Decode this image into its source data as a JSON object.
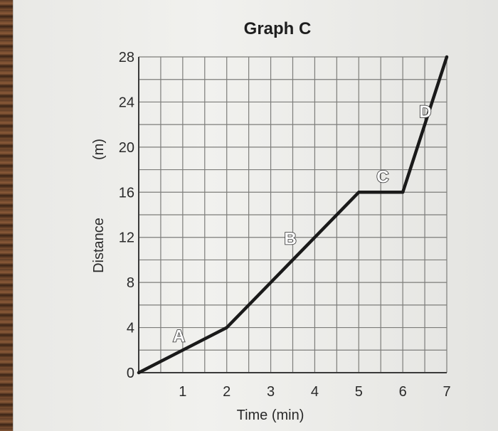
{
  "chart_data": {
    "type": "line",
    "title": "Graph C",
    "xlabel": "Time (min)",
    "ylabel": "Distance",
    "ylabel_unit": "(m)",
    "x_ticks": [
      1,
      2,
      3,
      4,
      5,
      6,
      7
    ],
    "y_ticks": [
      0,
      4,
      8,
      12,
      16,
      20,
      24,
      28
    ],
    "xlim": [
      0,
      7
    ],
    "ylim": [
      0,
      28
    ],
    "grid": true,
    "series": [
      {
        "x": [
          0,
          2,
          5,
          6,
          7
        ],
        "y": [
          0,
          4,
          16,
          16,
          28
        ],
        "color": "#1a1a1a"
      }
    ],
    "annotations": [
      {
        "text": "A",
        "x": 1,
        "y": 2
      },
      {
        "text": "B",
        "x": 3.5,
        "y": 10
      },
      {
        "text": "C",
        "x": 5.5,
        "y": 16
      },
      {
        "text": "D",
        "x": 6.5,
        "y": 22
      }
    ]
  }
}
